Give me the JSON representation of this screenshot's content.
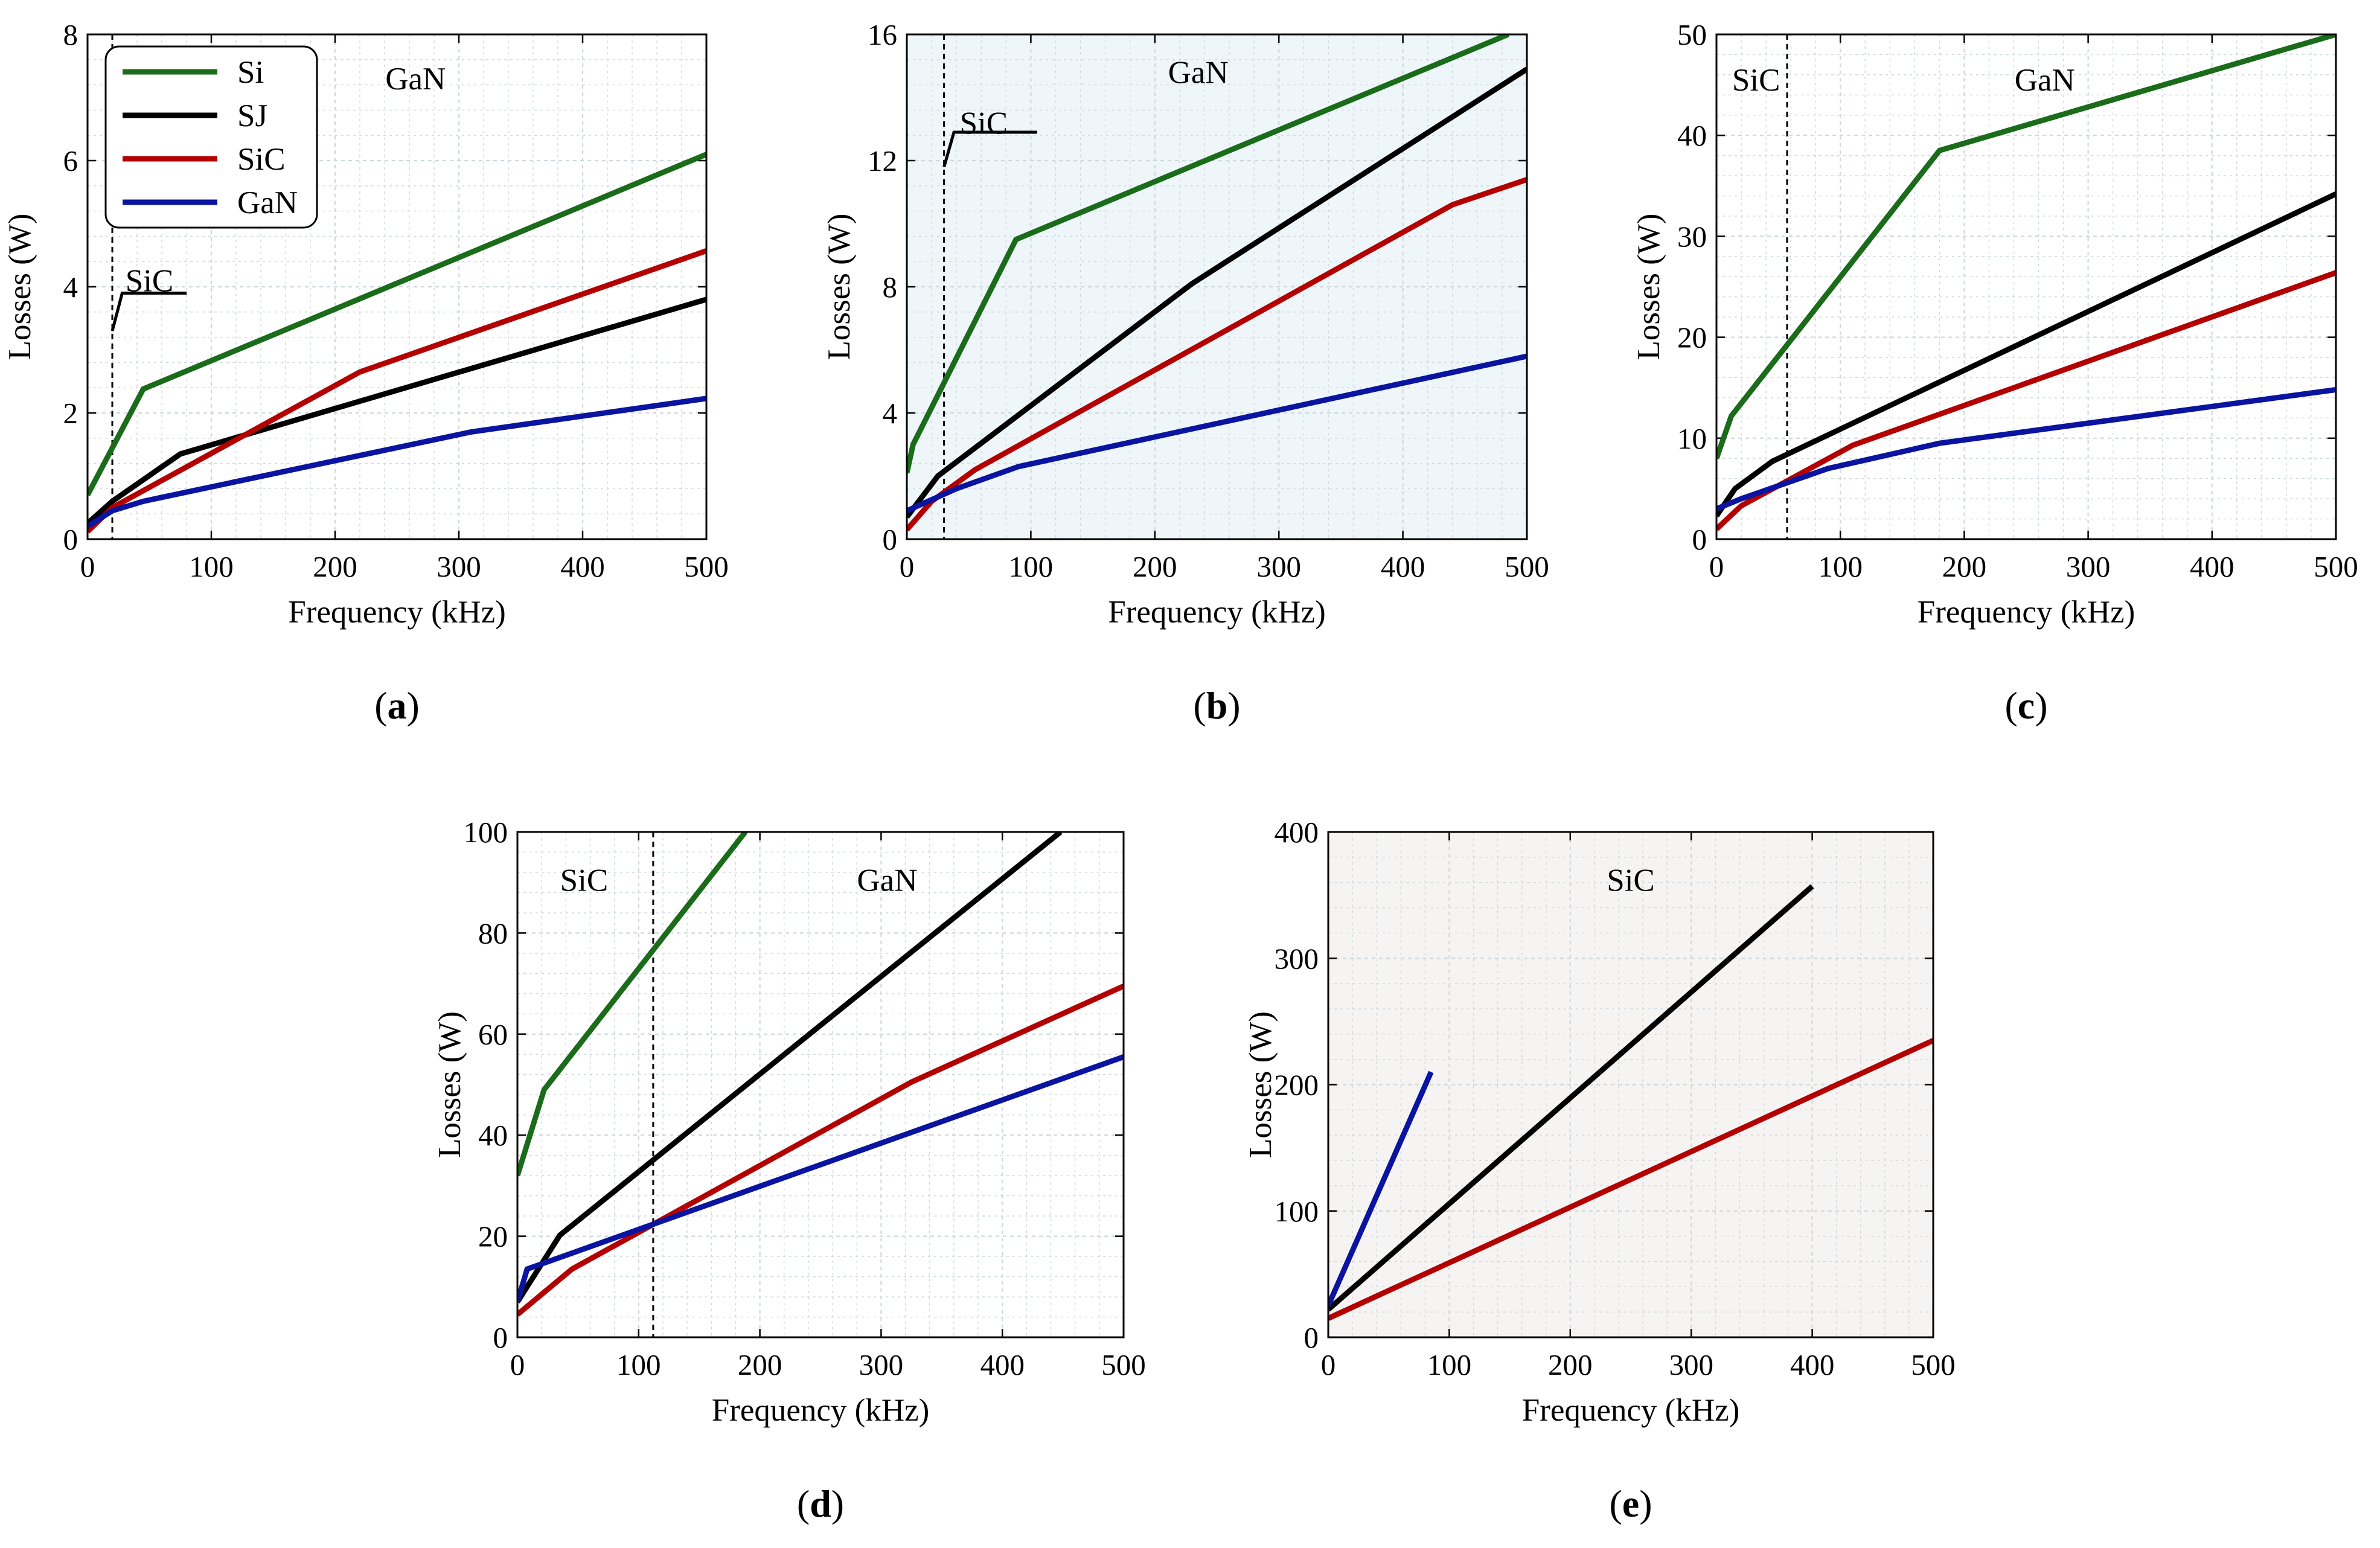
{
  "colors": {
    "Si": "#1a6b1a",
    "SJ": "#000000",
    "SiC": "#b30000",
    "GaN": "#0a14a0",
    "grid": "#cfd8dc",
    "shade_light_blue": "#eef6f9",
    "shade_light_gray": "#f6f4f3"
  },
  "chart_data": [
    {
      "id": "a",
      "type": "line",
      "caption_open": "(",
      "caption_letter": "a",
      "caption_close": ")",
      "xlabel": "Frequency (kHz)",
      "ylabel": "Losses (W)",
      "xlim": [
        0,
        500
      ],
      "ylim": [
        0,
        8
      ],
      "xticks": [
        "0",
        "100",
        "200",
        "300",
        "400",
        "500"
      ],
      "yticks": [
        "0",
        "2",
        "4",
        "6",
        "8"
      ],
      "legend": {
        "placement": "top-left",
        "entries": [
          "Si",
          "SJ",
          "SiC",
          "GaN"
        ]
      },
      "region_labels": [
        {
          "text": "GaN",
          "x": 265,
          "y": 7.3
        },
        {
          "text": "SiC",
          "x": 50,
          "y": 4.1
        }
      ],
      "boundary_x": 20,
      "series": [
        {
          "name": "Si",
          "color": "#1a6b1a",
          "x": [
            0,
            45,
            500
          ],
          "y": [
            0.7,
            2.38,
            6.1
          ]
        },
        {
          "name": "SJ",
          "color": "#000000",
          "x": [
            0,
            20,
            75,
            500
          ],
          "y": [
            0.25,
            0.6,
            1.35,
            3.8
          ]
        },
        {
          "name": "SiC",
          "color": "#b30000",
          "x": [
            0,
            20,
            220,
            500
          ],
          "y": [
            0.12,
            0.5,
            2.65,
            4.57
          ]
        },
        {
          "name": "GaN",
          "color": "#0a14a0",
          "x": [
            0,
            20,
            45,
            310,
            500
          ],
          "y": [
            0.2,
            0.45,
            0.6,
            1.7,
            2.23
          ]
        }
      ]
    },
    {
      "id": "b",
      "type": "line",
      "caption_open": "(",
      "caption_letter": "b",
      "caption_close": ")",
      "xlabel": "Frequency (kHz)",
      "ylabel": "Losses (W)",
      "xlim": [
        0,
        500
      ],
      "ylim": [
        0,
        16
      ],
      "xticks": [
        "0",
        "100",
        "200",
        "300",
        "400",
        "500"
      ],
      "yticks": [
        "0",
        "4",
        "8",
        "12",
        "16"
      ],
      "region_labels": [
        {
          "text": "GaN",
          "x": 235,
          "y": 14.8
        },
        {
          "text": "SiC",
          "x": 62,
          "y": 13.2
        }
      ],
      "boundary_x": 30,
      "series": [
        {
          "name": "Si",
          "color": "#1a6b1a",
          "x": [
            0,
            5,
            88,
            485
          ],
          "y": [
            2.1,
            3.0,
            9.5,
            16.0
          ]
        },
        {
          "name": "SJ",
          "color": "#000000",
          "x": [
            0,
            25,
            230,
            500
          ],
          "y": [
            0.7,
            2.0,
            8.1,
            14.9
          ]
        },
        {
          "name": "SiC",
          "color": "#b30000",
          "x": [
            0,
            20,
            55,
            440,
            500
          ],
          "y": [
            0.3,
            1.2,
            2.2,
            10.6,
            11.4
          ]
        },
        {
          "name": "GaN",
          "color": "#0a14a0",
          "x": [
            0,
            40,
            90,
            500
          ],
          "y": [
            0.9,
            1.6,
            2.3,
            5.8
          ]
        }
      ]
    },
    {
      "id": "c",
      "type": "line",
      "caption_open": "(",
      "caption_letter": "c",
      "caption_close": ")",
      "xlabel": "Frequency (kHz)",
      "ylabel": "Losses (W)",
      "xlim": [
        0,
        500
      ],
      "ylim": [
        0,
        50
      ],
      "xticks": [
        "0",
        "100",
        "200",
        "300",
        "400",
        "500"
      ],
      "yticks": [
        "0",
        "10",
        "20",
        "30",
        "40",
        "50"
      ],
      "region_labels": [
        {
          "text": "SiC",
          "x": 32,
          "y": 45.5
        },
        {
          "text": "GaN",
          "x": 265,
          "y": 45.5
        }
      ],
      "boundary_x": 57,
      "series": [
        {
          "name": "Si",
          "color": "#1a6b1a",
          "x": [
            0,
            12,
            180,
            500
          ],
          "y": [
            8.0,
            12.2,
            38.5,
            50.0
          ]
        },
        {
          "name": "SJ",
          "color": "#000000",
          "x": [
            0,
            15,
            45,
            500
          ],
          "y": [
            2.3,
            5.0,
            7.7,
            34.2
          ]
        },
        {
          "name": "SiC",
          "color": "#b30000",
          "x": [
            0,
            20,
            110,
            500
          ],
          "y": [
            1.0,
            3.3,
            9.3,
            26.4
          ]
        },
        {
          "name": "GaN",
          "color": "#0a14a0",
          "x": [
            0,
            20,
            90,
            180,
            500
          ],
          "y": [
            3.0,
            4.0,
            7.0,
            9.5,
            14.8
          ]
        }
      ]
    },
    {
      "id": "d",
      "type": "line",
      "caption_open": "(",
      "caption_letter": "d",
      "caption_close": ")",
      "xlabel": "Frequency (kHz)",
      "ylabel": "Losses (W)",
      "xlim": [
        0,
        500
      ],
      "ylim": [
        0,
        100
      ],
      "xticks": [
        "0",
        "100",
        "200",
        "300",
        "400",
        "500"
      ],
      "yticks": [
        "0",
        "20",
        "40",
        "60",
        "80",
        "100"
      ],
      "region_labels": [
        {
          "text": "SiC",
          "x": 55,
          "y": 90.5
        },
        {
          "text": "GaN",
          "x": 305,
          "y": 90.5
        }
      ],
      "boundary_x": 112,
      "series": [
        {
          "name": "Si",
          "color": "#1a6b1a",
          "x": [
            0,
            22,
            188
          ],
          "y": [
            32.0,
            49.0,
            100.0
          ]
        },
        {
          "name": "SJ",
          "color": "#000000",
          "x": [
            0,
            35,
            448
          ],
          "y": [
            7.0,
            20.2,
            100.0
          ]
        },
        {
          "name": "SiC",
          "color": "#b30000",
          "x": [
            0,
            45,
            325,
            500
          ],
          "y": [
            4.5,
            13.5,
            50.5,
            69.5
          ]
        },
        {
          "name": "GaN",
          "color": "#0a14a0",
          "x": [
            0,
            8,
            500
          ],
          "y": [
            7.0,
            13.5,
            55.5
          ]
        }
      ]
    },
    {
      "id": "e",
      "type": "line",
      "caption_open": "(",
      "caption_letter": "e",
      "caption_close": ")",
      "xlabel": "Frequency (kHz)",
      "ylabel": "Losses (W)",
      "xlim": [
        0,
        500
      ],
      "ylim": [
        0,
        400
      ],
      "xticks": [
        "0",
        "100",
        "200",
        "300",
        "400",
        "500"
      ],
      "yticks": [
        "0",
        "100",
        "200",
        "300",
        "400"
      ],
      "region_labels": [
        {
          "text": "SiC",
          "x": 250,
          "y": 362
        }
      ],
      "series": [
        {
          "name": "SJ",
          "color": "#000000",
          "x": [
            0,
            400
          ],
          "y": [
            22,
            357
          ]
        },
        {
          "name": "SiC",
          "color": "#b30000",
          "x": [
            0,
            500
          ],
          "y": [
            15,
            235
          ]
        },
        {
          "name": "GaN",
          "color": "#0a14a0",
          "x": [
            0,
            85
          ],
          "y": [
            25,
            210
          ]
        }
      ]
    }
  ]
}
